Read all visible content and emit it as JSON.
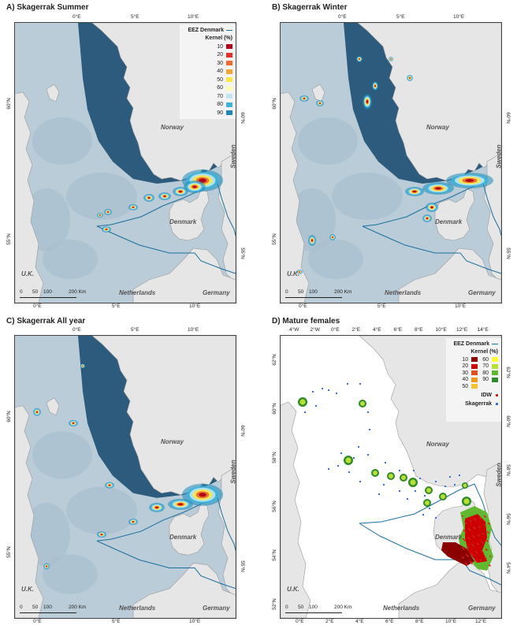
{
  "panels": {
    "a": {
      "title": "A) Skagerrak Summer",
      "lon_ticks": [
        "0°E",
        "5°E",
        "10°E"
      ],
      "bottom_ticks": [
        "0°E",
        "5°E",
        "10°E"
      ],
      "lat_left": [
        "60°N",
        "55°N"
      ],
      "lat_right": [
        "60°N",
        "55°N"
      ]
    },
    "b": {
      "title": "B) Skagerrak Winter",
      "lon_ticks": [
        "0°E",
        "5°E",
        "10°E"
      ],
      "bottom_ticks": [
        "0°E",
        "5°E",
        "10°E"
      ],
      "lat_left": [
        "60°N",
        "55°N"
      ],
      "lat_right": [
        "60°N",
        "55°N"
      ]
    },
    "c": {
      "title": "C) Skagerrak All year",
      "lon_ticks": [
        "0°E",
        "5°E",
        "10°E"
      ],
      "bottom_ticks": [
        "0°E",
        "5°E",
        "10°E"
      ],
      "lat_left": [
        "60°N",
        "55°N"
      ],
      "lat_right": [
        "60°N",
        "55°N"
      ]
    },
    "d": {
      "title": "D) Mature females",
      "lon_ticks": [
        "4°W",
        "2°W",
        "0°E",
        "2°E",
        "4°E",
        "6°E",
        "8°E",
        "10°E",
        "12°E",
        "14°E"
      ],
      "bottom_ticks": [
        "0°E",
        "2°E",
        "4°E",
        "6°E",
        "8°E",
        "10°E",
        "12°E"
      ],
      "lat_left": [
        "62°N",
        "60°N",
        "58°N",
        "56°N",
        "54°N",
        "52°N"
      ],
      "lat_right": [
        "62°N",
        "60°N",
        "58°N",
        "56°N",
        "54°N"
      ]
    }
  },
  "countries": {
    "norway": "Norway",
    "sweden": "Sweden",
    "denmark": "Denmark",
    "uk": "U.K.",
    "netherlands": "Netherlands",
    "germany": "Germany"
  },
  "legend_kernel": {
    "eez_label": "EEZ Denmark",
    "kernel_title": "Kernel (%)",
    "levels": [
      "10",
      "20",
      "30",
      "40",
      "50",
      "60",
      "70",
      "80",
      "90"
    ],
    "colors": [
      "#b0001a",
      "#e8312a",
      "#f26a2c",
      "#f7a233",
      "#fbe840",
      "#fffbb0",
      "#bfe6f0",
      "#3ab6dc",
      "#1e88b8"
    ]
  },
  "legend_d": {
    "eez_label": "EEZ Denmark",
    "kernel_title": "Kernel (%)",
    "col1": [
      "10",
      "20",
      "30",
      "40",
      "50"
    ],
    "col1_colors": [
      "#8b0000",
      "#cc0000",
      "#e05020",
      "#f29a1e",
      "#f4c430"
    ],
    "col2": [
      "60",
      "70",
      "80",
      "90"
    ],
    "col2_colors": [
      "#ffff33",
      "#b8e034",
      "#62b82e",
      "#2f8a2a"
    ],
    "idw": "IDW",
    "skagerrak": "Skagerrak",
    "idw_color": "#d42020",
    "skagerrak_color": "#3a6fd8"
  },
  "scalebar": {
    "labels": [
      "0",
      "50",
      "100",
      "200 Km"
    ]
  },
  "colors": {
    "deep_sea": "#2c5b7d",
    "shallow_sea": "#b9ccd8",
    "land": "#e6e6e6",
    "eez": "#1b6f9c"
  }
}
